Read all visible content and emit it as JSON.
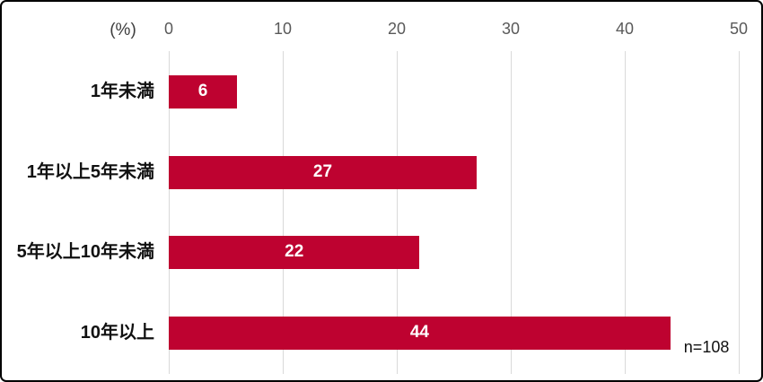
{
  "chart_data": {
    "type": "bar",
    "orientation": "horizontal",
    "title": "",
    "unit_label": "(%)",
    "categories": [
      "1年未満",
      "1年以上5年未満",
      "5年以上10年未満",
      "10年以上"
    ],
    "values": [
      6,
      27,
      22,
      44
    ],
    "value_suffix": "%",
    "xlim": [
      0,
      50
    ],
    "x_ticks": [
      0,
      10,
      20,
      30,
      40,
      50
    ],
    "grid": true,
    "legend": false,
    "annotation": "n=108",
    "colors": {
      "bar": "#BE0230",
      "value_label": "#ffffff",
      "tick_label": "#595959",
      "gridline": "#d9d9d9",
      "category_label": "#111111",
      "annotation": "#111111"
    }
  }
}
